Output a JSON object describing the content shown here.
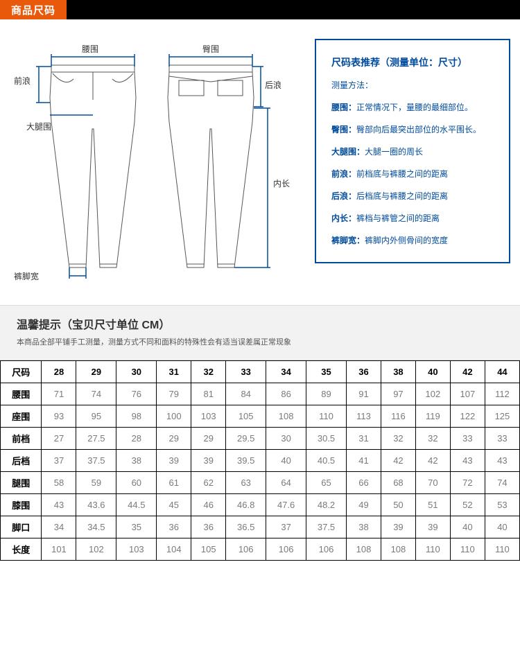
{
  "header": {
    "title": "商品尺码"
  },
  "diagram": {
    "labels": {
      "waist": "腰围",
      "hip": "臀围",
      "front_rise": "前浪",
      "back_rise": "后浪",
      "thigh": "大腿围",
      "inseam": "内长",
      "hem": "裤脚宽"
    },
    "stroke": "#004b9b",
    "outline": "#555555"
  },
  "recommend": {
    "title": "尺码表推荐（测量单位：尺寸）",
    "method_label": "测量方法：",
    "items": [
      {
        "k": "腰围：",
        "v": "正常情况下，量腰的最细部位。"
      },
      {
        "k": "臀围：",
        "v": "臀部向后最突出部位的水平围长。"
      },
      {
        "k": "大腿围：",
        "v": "大腿一圈的周长"
      },
      {
        "k": "前浪：",
        "v": "前档底与裤腰之间的距离"
      },
      {
        "k": "后浪：",
        "v": "后档底与裤腰之间的距离"
      },
      {
        "k": "内长：",
        "v": "裤档与裤管之间的距离"
      },
      {
        "k": "裤脚宽：",
        "v": "裤脚内外侧骨间的宽度"
      }
    ]
  },
  "tip": {
    "title": "温馨提示（宝贝尺寸单位  CM）",
    "subtitle": "本商品全部平铺手工测量，测量方式不同和面料的特殊性会有适当误差属正常现象"
  },
  "table": {
    "header_label": "尺码",
    "sizes": [
      "28",
      "29",
      "30",
      "31",
      "32",
      "33",
      "34",
      "35",
      "36",
      "38",
      "40",
      "42",
      "44"
    ],
    "rows": [
      {
        "label": "腰围",
        "values": [
          "71",
          "74",
          "76",
          "79",
          "81",
          "84",
          "86",
          "89",
          "91",
          "97",
          "102",
          "107",
          "112"
        ]
      },
      {
        "label": "座围",
        "values": [
          "93",
          "95",
          "98",
          "100",
          "103",
          "105",
          "108",
          "110",
          "113",
          "116",
          "119",
          "122",
          "125"
        ]
      },
      {
        "label": "前档",
        "values": [
          "27",
          "27.5",
          "28",
          "29",
          "29",
          "29.5",
          "30",
          "30.5",
          "31",
          "32",
          "32",
          "33",
          "33"
        ]
      },
      {
        "label": "后档",
        "values": [
          "37",
          "37.5",
          "38",
          "39",
          "39",
          "39.5",
          "40",
          "40.5",
          "41",
          "42",
          "42",
          "43",
          "43"
        ]
      },
      {
        "label": "腿围",
        "values": [
          "58",
          "59",
          "60",
          "61",
          "62",
          "63",
          "64",
          "65",
          "66",
          "68",
          "70",
          "72",
          "74"
        ]
      },
      {
        "label": "膝围",
        "values": [
          "43",
          "43.6",
          "44.5",
          "45",
          "46",
          "46.8",
          "47.6",
          "48.2",
          "49",
          "50",
          "51",
          "52",
          "53"
        ]
      },
      {
        "label": "脚口",
        "values": [
          "34",
          "34.5",
          "35",
          "36",
          "36",
          "36.5",
          "37",
          "37.5",
          "38",
          "39",
          "39",
          "40",
          "40"
        ]
      },
      {
        "label": "长度",
        "values": [
          "101",
          "102",
          "103",
          "104",
          "105",
          "106",
          "106",
          "106",
          "108",
          "108",
          "110",
          "110",
          "110"
        ]
      }
    ]
  }
}
